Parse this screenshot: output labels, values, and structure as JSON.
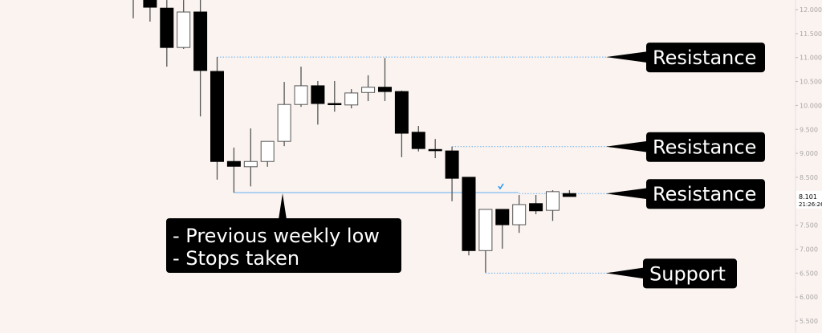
{
  "chart_data": {
    "type": "candlestick",
    "y_ticks": [
      "12.000",
      "11.500",
      "11.000",
      "10.500",
      "10.000",
      "9.500",
      "9.000",
      "8.500",
      "7.500",
      "7.000",
      "6.500",
      "6.000",
      "5.500"
    ],
    "y_tick_values": [
      12.0,
      11.5,
      11.0,
      10.5,
      10.0,
      9.5,
      9.0,
      8.5,
      7.5,
      7.0,
      6.5,
      6.0,
      5.5
    ],
    "ylim": [
      5.3,
      12.2
    ],
    "grid": false,
    "candles": [
      {
        "o": 12.4,
        "h": 12.5,
        "l": 11.82,
        "c": 12.3
      },
      {
        "o": 12.3,
        "h": 12.4,
        "l": 11.75,
        "c": 12.05
      },
      {
        "o": 12.03,
        "h": 12.2,
        "l": 10.81,
        "c": 11.21
      },
      {
        "o": 11.21,
        "h": 12.2,
        "l": 11.18,
        "c": 11.95
      },
      {
        "o": 11.95,
        "h": 12.2,
        "l": 9.77,
        "c": 10.73
      },
      {
        "o": 10.71,
        "h": 11.01,
        "l": 8.45,
        "c": 8.83
      },
      {
        "o": 8.83,
        "h": 9.12,
        "l": 8.18,
        "c": 8.73
      },
      {
        "o": 8.72,
        "h": 9.52,
        "l": 8.31,
        "c": 8.83
      },
      {
        "o": 8.83,
        "h": 9.25,
        "l": 8.72,
        "c": 9.25
      },
      {
        "o": 9.25,
        "h": 10.49,
        "l": 9.15,
        "c": 10.02
      },
      {
        "o": 10.02,
        "h": 10.81,
        "l": 9.97,
        "c": 10.41
      },
      {
        "o": 10.41,
        "h": 10.51,
        "l": 9.6,
        "c": 10.04
      },
      {
        "o": 10.04,
        "h": 10.51,
        "l": 9.87,
        "c": 10.02
      },
      {
        "o": 10.01,
        "h": 10.34,
        "l": 9.94,
        "c": 10.26
      },
      {
        "o": 10.27,
        "h": 10.63,
        "l": 10.09,
        "c": 10.38
      },
      {
        "o": 10.38,
        "h": 10.99,
        "l": 10.09,
        "c": 10.29
      },
      {
        "o": 10.29,
        "h": 10.31,
        "l": 8.92,
        "c": 9.42
      },
      {
        "o": 9.44,
        "h": 9.57,
        "l": 9.04,
        "c": 9.1
      },
      {
        "o": 9.08,
        "h": 9.3,
        "l": 8.9,
        "c": 9.06
      },
      {
        "o": 9.05,
        "h": 9.14,
        "l": 8.0,
        "c": 8.48
      },
      {
        "o": 8.5,
        "h": 8.5,
        "l": 6.87,
        "c": 6.97
      },
      {
        "o": 6.97,
        "h": 7.83,
        "l": 6.51,
        "c": 7.83
      },
      {
        "o": 7.83,
        "h": 7.83,
        "l": 7.01,
        "c": 7.51
      },
      {
        "o": 7.51,
        "h": 8.13,
        "l": 7.34,
        "c": 7.93
      },
      {
        "o": 7.95,
        "h": 8.13,
        "l": 7.73,
        "c": 7.8
      },
      {
        "o": 7.81,
        "h": 8.23,
        "l": 7.59,
        "c": 8.2
      },
      {
        "o": 8.16,
        "h": 8.23,
        "l": 8.1,
        "c": 8.1
      }
    ],
    "current_price": "8.101",
    "countdown": "21:26:26",
    "levels": [
      {
        "label": "Resistance",
        "price": 11.01,
        "from_index": 5
      },
      {
        "label": "Resistance",
        "price": 9.14,
        "from_index": 19
      },
      {
        "label": "Resistance",
        "price": 8.16,
        "from_index": 23
      },
      {
        "label": "Support",
        "price": 6.5,
        "from_index": 21
      }
    ],
    "weekly_low": {
      "price": 8.18,
      "from_index": 6,
      "to_index": 22,
      "lines": [
        "- Previous weekly low",
        "- Stops taken"
      ]
    },
    "colors": {
      "background": "#faf3f0",
      "bear": "#000000",
      "bull": "#ffffff",
      "level": "#64b0f0",
      "note_bg": "#000000",
      "note_text": "#ffffff",
      "axis_text": "#aaa4a4"
    }
  }
}
